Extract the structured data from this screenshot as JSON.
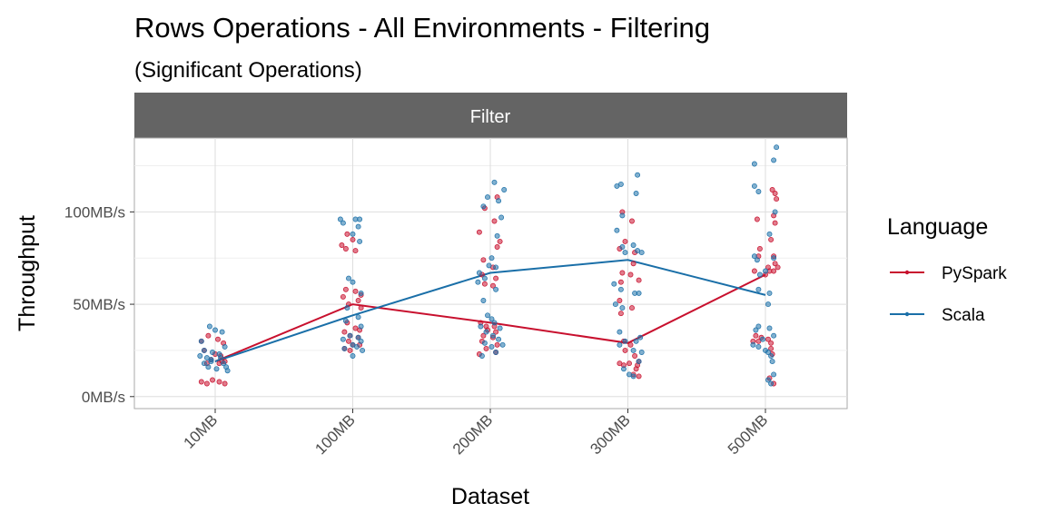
{
  "chart_data": {
    "type": "scatter",
    "title": "Rows Operations - All Environments - Filtering",
    "subtitle": "(Significant Operations)",
    "facet": "Filter",
    "xlabel": "Dataset",
    "ylabel": "Throughput",
    "categories": [
      "10MB",
      "100MB",
      "200MB",
      "300MB",
      "500MB"
    ],
    "y_ticks": [
      {
        "value": 0,
        "label": "0MB/s"
      },
      {
        "value": 50,
        "label": "50MB/s"
      },
      {
        "value": 100,
        "label": "100MB/s"
      }
    ],
    "ylim": [
      -6.5,
      140
    ],
    "grid": true,
    "legend": {
      "title": "Language",
      "position": "right"
    },
    "series": [
      {
        "name": "PySpark",
        "color": "#c8102e",
        "means": [
          19,
          50,
          40,
          29,
          66
        ],
        "points": [
          [
            [
              -0.1,
              30
            ],
            [
              -0.05,
              33
            ],
            [
              0.02,
              31
            ],
            [
              0.06,
              29
            ],
            [
              -0.08,
              25
            ],
            [
              0.0,
              23
            ],
            [
              0.04,
              22
            ],
            [
              -0.03,
              20
            ],
            [
              0.07,
              19
            ],
            [
              -0.06,
              18
            ],
            [
              0.03,
              18
            ],
            [
              -0.1,
              8
            ],
            [
              -0.06,
              7
            ],
            [
              -0.02,
              9
            ],
            [
              0.03,
              8
            ],
            [
              0.07,
              7
            ],
            [
              0.05,
              19
            ]
          ],
          [
            [
              -0.04,
              88
            ],
            [
              0.0,
              85
            ],
            [
              -0.08,
              82
            ],
            [
              -0.05,
              80
            ],
            [
              0.02,
              79
            ],
            [
              -0.05,
              58
            ],
            [
              0.02,
              57
            ],
            [
              0.06,
              55
            ],
            [
              -0.07,
              54
            ],
            [
              0.04,
              52
            ],
            [
              -0.03,
              50
            ],
            [
              0.06,
              48
            ],
            [
              -0.04,
              40
            ],
            [
              0.02,
              37
            ],
            [
              0.05,
              36
            ],
            [
              -0.06,
              35
            ],
            [
              -0.02,
              33
            ],
            [
              0.04,
              32
            ],
            [
              -0.03,
              30
            ],
            [
              0.0,
              28
            ],
            [
              0.05,
              28
            ],
            [
              -0.02,
              25
            ],
            [
              -0.06,
              26
            ]
          ],
          [
            [
              0.05,
              108
            ],
            [
              -0.04,
              102
            ],
            [
              0.03,
              95
            ],
            [
              -0.08,
              89
            ],
            [
              0.07,
              84
            ],
            [
              0.05,
              81
            ],
            [
              -0.05,
              74
            ],
            [
              0.02,
              70
            ],
            [
              -0.06,
              66
            ],
            [
              0.04,
              64
            ],
            [
              -0.04,
              61
            ],
            [
              0.02,
              60
            ],
            [
              -0.07,
              40
            ],
            [
              -0.03,
              38
            ],
            [
              0.03,
              38
            ],
            [
              -0.02,
              36
            ],
            [
              0.04,
              35
            ],
            [
              -0.05,
              33
            ],
            [
              0.02,
              32
            ],
            [
              -0.06,
              30
            ],
            [
              0.05,
              28
            ],
            [
              -0.03,
              26
            ],
            [
              0.04,
              24
            ],
            [
              -0.08,
              23
            ]
          ],
          [
            [
              -0.04,
              100
            ],
            [
              0.03,
              95
            ],
            [
              -0.02,
              84
            ],
            [
              -0.06,
              80
            ],
            [
              0.05,
              78
            ],
            [
              0.04,
              72
            ],
            [
              -0.04,
              67
            ],
            [
              -0.05,
              62
            ],
            [
              0.02,
              66
            ],
            [
              0.08,
              63
            ],
            [
              -0.06,
              52
            ],
            [
              0.03,
              48
            ],
            [
              -0.05,
              45
            ],
            [
              -0.03,
              30
            ],
            [
              0.02,
              28
            ],
            [
              -0.02,
              25
            ],
            [
              0.05,
              22
            ],
            [
              -0.06,
              18
            ],
            [
              -0.03,
              17
            ],
            [
              0.01,
              18
            ],
            [
              0.07,
              17
            ],
            [
              0.08,
              19
            ],
            [
              0.06,
              15
            ],
            [
              0.08,
              11
            ],
            [
              0.04,
              12
            ]
          ],
          [
            [
              0.05,
              112
            ],
            [
              0.07,
              110
            ],
            [
              0.08,
              107
            ],
            [
              -0.06,
              96
            ],
            [
              0.06,
              98
            ],
            [
              0.07,
              94
            ],
            [
              0.04,
              85
            ],
            [
              -0.04,
              80
            ],
            [
              -0.05,
              76
            ],
            [
              0.06,
              76
            ],
            [
              -0.08,
              68
            ],
            [
              0.02,
              70
            ],
            [
              0.07,
              72
            ],
            [
              0.0,
              66
            ],
            [
              0.03,
              68
            ],
            [
              0.06,
              68
            ],
            [
              0.09,
              70
            ],
            [
              -0.07,
              33
            ],
            [
              -0.03,
              32
            ],
            [
              0.02,
              31
            ],
            [
              -0.05,
              30
            ],
            [
              0.04,
              29
            ],
            [
              -0.09,
              30
            ],
            [
              0.04,
              26
            ],
            [
              0.05,
              23
            ],
            [
              0.03,
              10
            ],
            [
              0.06,
              7
            ]
          ]
        ]
      },
      {
        "name": "Scala",
        "color": "#1a6fa8",
        "means": [
          19,
          44,
          67,
          74,
          55
        ],
        "points": [
          [
            [
              -0.04,
              38
            ],
            [
              0.0,
              36
            ],
            [
              0.05,
              35
            ],
            [
              -0.1,
              30
            ],
            [
              0.07,
              27
            ],
            [
              -0.08,
              25
            ],
            [
              -0.02,
              24
            ],
            [
              0.03,
              23
            ],
            [
              -0.06,
              21
            ],
            [
              -0.11,
              22
            ],
            [
              0.04,
              21
            ],
            [
              -0.03,
              19
            ],
            [
              -0.08,
              18
            ],
            [
              0.06,
              18
            ],
            [
              -0.05,
              16
            ],
            [
              0.01,
              15
            ],
            [
              0.08,
              16
            ],
            [
              -0.03,
              20
            ],
            [
              0.09,
              14
            ]
          ],
          [
            [
              -0.09,
              96
            ],
            [
              0.02,
              96
            ],
            [
              0.05,
              96
            ],
            [
              0.04,
              92
            ],
            [
              -0.07,
              94
            ],
            [
              0.0,
              88
            ],
            [
              0.05,
              84
            ],
            [
              -0.03,
              64
            ],
            [
              0.0,
              62
            ],
            [
              0.06,
              56
            ],
            [
              -0.04,
              48
            ],
            [
              0.04,
              43
            ],
            [
              -0.05,
              41
            ],
            [
              0.06,
              38
            ],
            [
              -0.02,
              33
            ],
            [
              0.04,
              32
            ],
            [
              -0.07,
              31
            ],
            [
              0.06,
              30
            ],
            [
              0.0,
              28
            ],
            [
              0.03,
              27
            ],
            [
              -0.06,
              26
            ],
            [
              0.07,
              25
            ],
            [
              0.0,
              22
            ]
          ],
          [
            [
              0.03,
              116
            ],
            [
              0.1,
              112
            ],
            [
              -0.02,
              108
            ],
            [
              0.06,
              106
            ],
            [
              -0.05,
              103
            ],
            [
              0.08,
              97
            ],
            [
              0.05,
              87
            ],
            [
              0.01,
              75
            ],
            [
              -0.01,
              71
            ],
            [
              0.04,
              70
            ],
            [
              -0.08,
              67
            ],
            [
              -0.04,
              64
            ],
            [
              -0.09,
              62
            ],
            [
              0.04,
              58
            ],
            [
              -0.05,
              52
            ],
            [
              -0.02,
              44
            ],
            [
              0.01,
              42
            ],
            [
              0.03,
              40
            ],
            [
              -0.07,
              38
            ],
            [
              0.07,
              37
            ],
            [
              -0.03,
              35
            ],
            [
              0.02,
              33
            ],
            [
              0.06,
              31
            ],
            [
              -0.04,
              29
            ],
            [
              0.09,
              28
            ],
            [
              0.01,
              27
            ],
            [
              0.04,
              24
            ],
            [
              -0.06,
              22
            ]
          ],
          [
            [
              -0.08,
              114
            ],
            [
              -0.05,
              115
            ],
            [
              0.07,
              120
            ],
            [
              0.06,
              110
            ],
            [
              -0.04,
              98
            ],
            [
              -0.08,
              90
            ],
            [
              -0.04,
              81
            ],
            [
              -0.02,
              78
            ],
            [
              0.04,
              82
            ],
            [
              0.07,
              79
            ],
            [
              0.1,
              78
            ],
            [
              -0.1,
              61
            ],
            [
              -0.05,
              58
            ],
            [
              0.05,
              56
            ],
            [
              0.08,
              56
            ],
            [
              -0.09,
              50
            ],
            [
              -0.04,
              48
            ],
            [
              -0.06,
              35
            ],
            [
              0.09,
              32
            ],
            [
              -0.02,
              30
            ],
            [
              0.06,
              30
            ],
            [
              -0.06,
              28
            ],
            [
              0.04,
              25
            ],
            [
              0.1,
              24
            ],
            [
              0.08,
              19
            ],
            [
              -0.03,
              15
            ],
            [
              0.01,
              12
            ],
            [
              0.04,
              11
            ]
          ],
          [
            [
              -0.08,
              126
            ],
            [
              0.08,
              135
            ],
            [
              0.06,
              128
            ],
            [
              -0.08,
              114
            ],
            [
              -0.05,
              111
            ],
            [
              0.07,
              100
            ],
            [
              0.03,
              88
            ],
            [
              0.06,
              75
            ],
            [
              -0.08,
              76
            ],
            [
              -0.06,
              74
            ],
            [
              0.0,
              68
            ],
            [
              -0.04,
              66
            ],
            [
              0.03,
              56
            ],
            [
              -0.05,
              58
            ],
            [
              0.02,
              50
            ],
            [
              -0.07,
              36
            ],
            [
              -0.05,
              38
            ],
            [
              0.03,
              37
            ],
            [
              -0.02,
              31
            ],
            [
              0.06,
              33
            ],
            [
              -0.09,
              28
            ],
            [
              -0.05,
              27
            ],
            [
              0.0,
              25
            ],
            [
              0.02,
              24
            ],
            [
              0.04,
              22
            ],
            [
              0.05,
              19
            ],
            [
              0.06,
              12
            ],
            [
              0.02,
              9
            ],
            [
              0.04,
              7
            ]
          ]
        ]
      }
    ]
  }
}
